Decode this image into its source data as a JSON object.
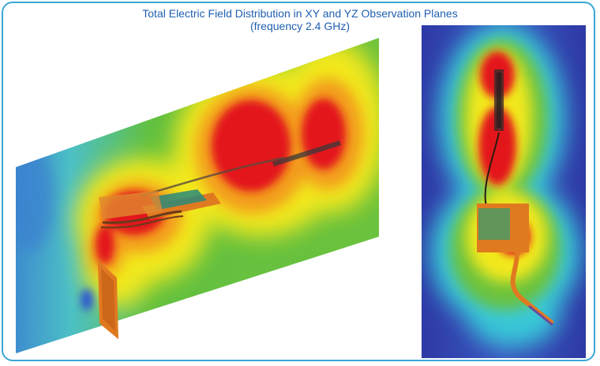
{
  "figure": {
    "title": "Total Electric Field Distribution in XY and YZ Observation Planes",
    "subtitle": "(frequency 2.4 GHz)"
  },
  "colors": {
    "frame": "#3aa6d8",
    "title": "#1f5fb0",
    "field_high": "#e3151b",
    "field_mid": "#f5ec1e",
    "field_low": "#5fbf3a",
    "field_min": "#3a4fbf"
  }
}
